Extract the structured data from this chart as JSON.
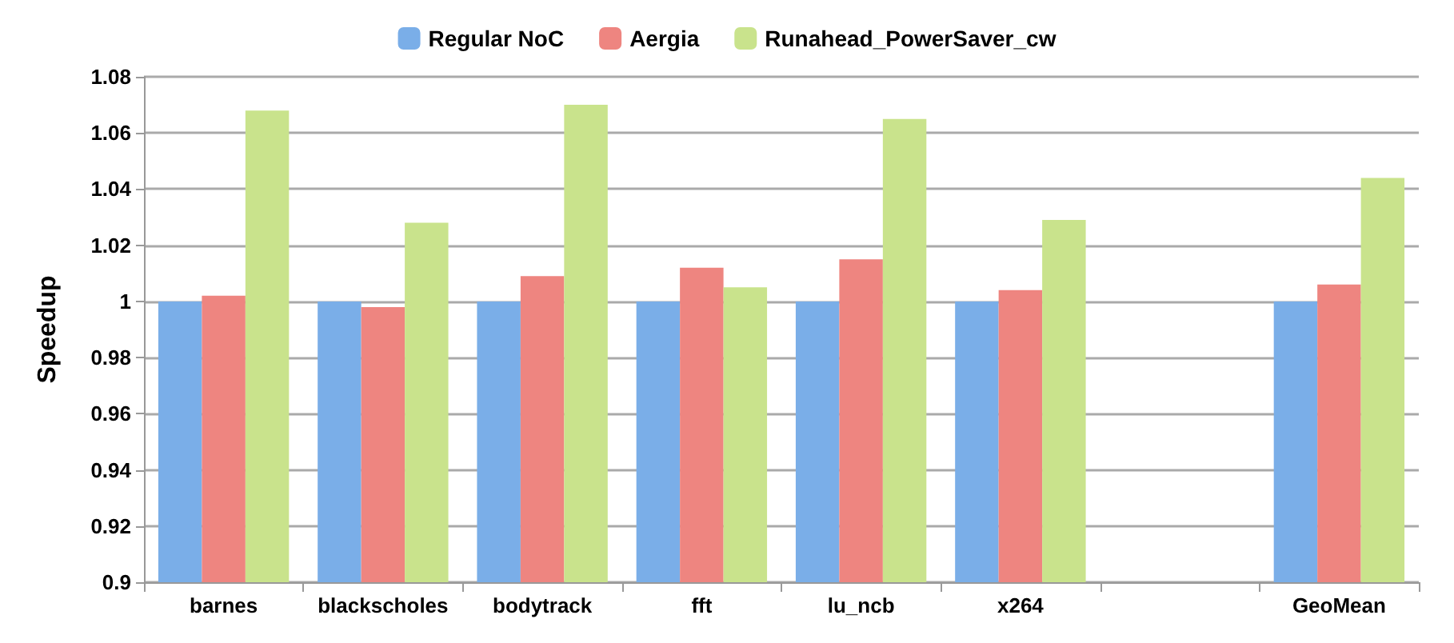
{
  "chart_data": {
    "type": "bar",
    "ylabel": "Speedup",
    "categories": [
      "barnes",
      "blackscholes",
      "bodytrack",
      "fft",
      "lu_ncb",
      "x264",
      null,
      "GeoMean"
    ],
    "series": [
      {
        "name": "Regular NoC",
        "color": "#7aaee8",
        "values": [
          1,
          1,
          1,
          1,
          1,
          1,
          null,
          1
        ]
      },
      {
        "name": "Aergia",
        "color": "#ee8580",
        "values": [
          1.002,
          0.998,
          1.009,
          1.012,
          1.015,
          1.004,
          null,
          1.006
        ]
      },
      {
        "name": "Runahead_PowerSaver_cw",
        "color": "#c9e38c",
        "values": [
          1.068,
          1.028,
          1.07,
          1.005,
          1.065,
          1.029,
          null,
          1.044
        ]
      }
    ],
    "ylim": [
      0.9,
      1.08
    ],
    "yticks": [
      0.9,
      0.92,
      0.94,
      0.96,
      0.98,
      1,
      1.02,
      1.04,
      1.06,
      1.08
    ],
    "grid": "y",
    "legend": "top"
  }
}
